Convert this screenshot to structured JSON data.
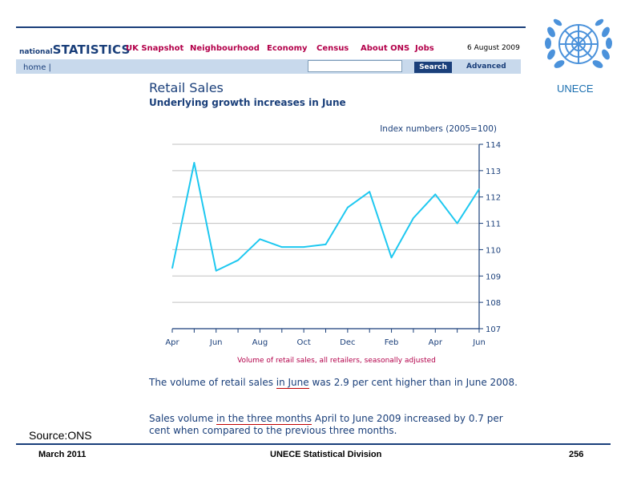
{
  "header": {
    "logo_small": "national",
    "logo_big": "STATISTICS",
    "nav": [
      "UK Snapshot",
      "Neighbourhood",
      "Economy",
      "Census",
      "About ONS",
      "Jobs"
    ],
    "date": "6 August 2009",
    "home": "home |",
    "search_value": "",
    "search_button": "Search",
    "advanced": "Advanced"
  },
  "branding": {
    "org": "UNECE"
  },
  "article": {
    "title": "Retail Sales",
    "subtitle": "Underlying growth increases in June",
    "para1_pre": "The volume of retail sales ",
    "para1_link": "in June",
    "para1_post": " was 2.9 per cent higher than in June 2008.",
    "para2_pre": "Sales volume ",
    "para2_link": "in the three months",
    "para2_post": " April to June 2009 increased by 0.7 per cent when compared to the previous three months."
  },
  "source": "Source:ONS",
  "footer": {
    "left": "March 2011",
    "center": "UNECE Statistical Division",
    "right": "256"
  },
  "colors": {
    "line": "#1ec8f0",
    "navy": "#1a3f7a",
    "nav_link": "#b3004a",
    "caption": "#b3004a"
  },
  "chart_data": {
    "type": "line",
    "title": "Index numbers (2005=100)",
    "xlabel": "Volume of retail sales, all retailers, seasonally adjusted",
    "ylabel": "",
    "tick_labels": [
      "Apr",
      "Jun",
      "Aug",
      "Oct",
      "Dec",
      "Feb",
      "Apr",
      "Jun"
    ],
    "ylim": [
      107,
      114
    ],
    "yticks": [
      107,
      108,
      109,
      110,
      111,
      112,
      113,
      114
    ],
    "y_axis_side": "right",
    "grid": "horizontal",
    "series": [
      {
        "values": [
          109.3,
          113.3,
          109.2,
          109.6,
          110.4,
          110.1,
          110.1,
          110.2,
          111.6,
          112.2,
          109.7,
          111.2,
          112.1,
          111.0,
          112.3
        ]
      }
    ]
  }
}
